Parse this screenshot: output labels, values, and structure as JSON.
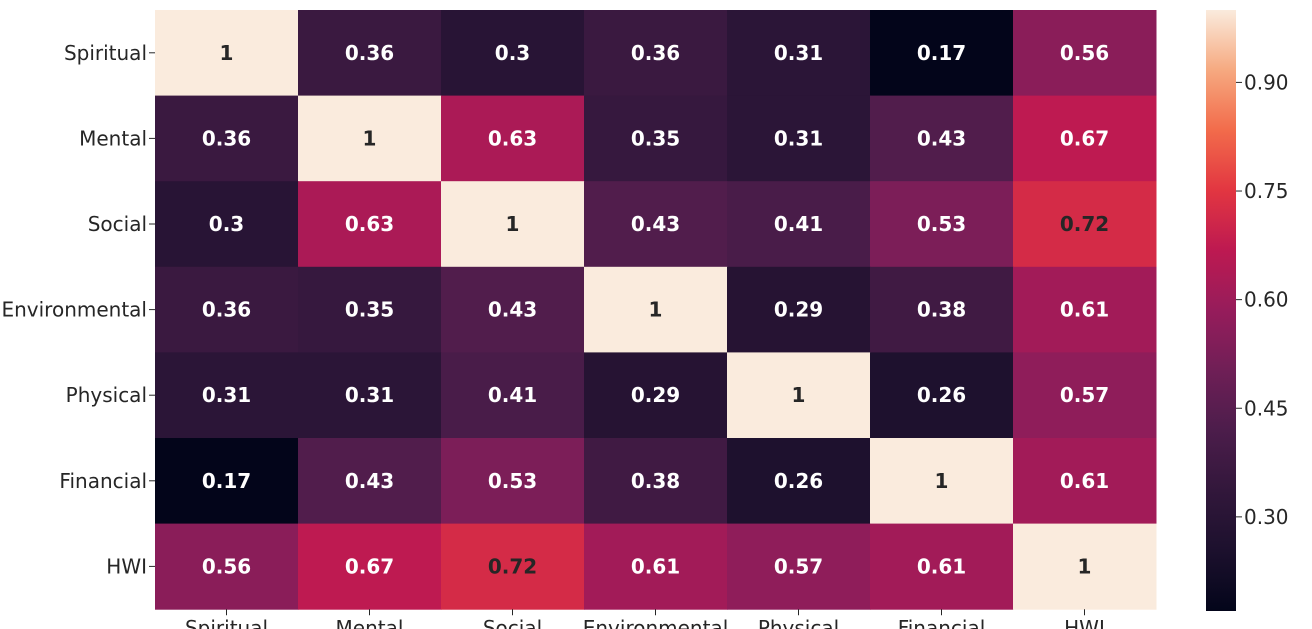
{
  "chart_data": {
    "type": "heatmap",
    "title": "",
    "xlabel": "",
    "ylabel": "",
    "row_labels": [
      "Spiritual",
      "Mental",
      "Social",
      "Environmental",
      "Physical",
      "Financial",
      "HWI"
    ],
    "col_labels": [
      "Spiritual",
      "Mental",
      "Social",
      "Environmental",
      "Physical",
      "Financial",
      "HWI"
    ],
    "values": [
      [
        1,
        0.36,
        0.3,
        0.36,
        0.31,
        0.17,
        0.56
      ],
      [
        0.36,
        1,
        0.63,
        0.35,
        0.31,
        0.43,
        0.67
      ],
      [
        0.3,
        0.63,
        1,
        0.43,
        0.41,
        0.53,
        0.72
      ],
      [
        0.36,
        0.35,
        0.43,
        1,
        0.29,
        0.38,
        0.61
      ],
      [
        0.31,
        0.31,
        0.41,
        0.29,
        1,
        0.26,
        0.57
      ],
      [
        0.17,
        0.43,
        0.53,
        0.38,
        0.26,
        1,
        0.61
      ],
      [
        0.56,
        0.67,
        0.72,
        0.61,
        0.57,
        0.61,
        1
      ]
    ],
    "annotations": [
      [
        "1",
        "0.36",
        "0.3",
        "0.36",
        "0.31",
        "0.17",
        "0.56"
      ],
      [
        "0.36",
        "1",
        "0.63",
        "0.35",
        "0.31",
        "0.43",
        "0.67"
      ],
      [
        "0.3",
        "0.63",
        "1",
        "0.43",
        "0.41",
        "0.53",
        "0.72"
      ],
      [
        "0.36",
        "0.35",
        "0.43",
        "1",
        "0.29",
        "0.38",
        "0.61"
      ],
      [
        "0.31",
        "0.31",
        "0.41",
        "0.29",
        "1",
        "0.26",
        "0.57"
      ],
      [
        "0.17",
        "0.43",
        "0.53",
        "0.38",
        "0.26",
        "1",
        "0.61"
      ],
      [
        "0.56",
        "0.67",
        "0.72",
        "0.61",
        "0.57",
        "0.61",
        "1"
      ]
    ],
    "colormap": "rocket",
    "vmin": 0.17,
    "vmax": 1,
    "colorbar": {
      "ticks": [
        0.3,
        0.45,
        0.6,
        0.75,
        0.9
      ],
      "tick_labels": [
        "0.30",
        "0.45",
        "0.60",
        "0.75",
        "0.90"
      ],
      "placement": "right"
    },
    "grid": false,
    "colors": {
      "text_light": "#ffffff",
      "text_dark": "#262626"
    }
  }
}
